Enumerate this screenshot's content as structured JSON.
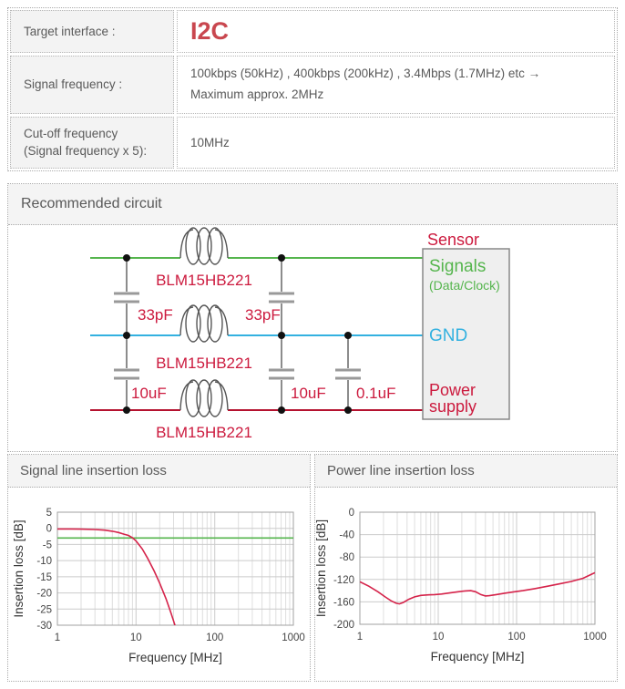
{
  "table": {
    "interface_row": {
      "label": "Target interface :",
      "value": "I2C"
    },
    "frequency_row": {
      "label": "Signal frequency :",
      "value_line1": "100kbps (50kHz) , 400kbps (200kHz) , 3.4Mbps (1.7MHz) etc →",
      "value_line2": "Maximum approx. 2MHz"
    },
    "cutoff_row": {
      "label_line1": "Cut-off frequency",
      "label_line2": "(Signal frequency x 5):",
      "value": "10MHz"
    }
  },
  "circuit": {
    "header": "Recommended circuit",
    "sensor_title": "Sensor",
    "box": {
      "signals": "Signals",
      "signals_sub": "(Data/Clock)",
      "gnd": "GND",
      "power_line1": "Power",
      "power_line2": "supply"
    },
    "beads": [
      "BLM15HB221",
      "BLM15HB221",
      "BLM15HB221"
    ],
    "caps": [
      "33pF",
      "33pF",
      "10uF",
      "10uF",
      "0.1uF"
    ],
    "colors": {
      "accent_red": "#c9474f",
      "label_red": "#cc1a3e",
      "signal_line": "#55b54d",
      "gnd_line": "#33b1e0",
      "power_line": "#b5122f"
    }
  },
  "chart_data": [
    {
      "id": "signal-line-insertion-loss",
      "type": "line",
      "title": "Signal line insertion loss",
      "xlabel": "Frequency [MHz]",
      "ylabel": "Insertion loss [dB]",
      "xscale": "log",
      "xlim": [
        1,
        1000
      ],
      "ylim": [
        -30,
        5
      ],
      "xticks": [
        1,
        10,
        100,
        1000
      ],
      "yticks": [
        5,
        0,
        -5,
        -10,
        -15,
        -20,
        -25,
        -30
      ],
      "grid": true,
      "legend": "none",
      "series": [
        {
          "name": "-3dB reference",
          "color": "#55b54d",
          "points": [
            [
              1,
              -3
            ],
            [
              1000,
              -3
            ]
          ]
        },
        {
          "name": "insertion loss",
          "color": "#d5234a",
          "points": [
            [
              1,
              -0.2
            ],
            [
              1.5,
              -0.2
            ],
            [
              2,
              -0.25
            ],
            [
              3,
              -0.35
            ],
            [
              4,
              -0.55
            ],
            [
              5,
              -0.9
            ],
            [
              6,
              -1.3
            ],
            [
              7,
              -1.8
            ],
            [
              8,
              -2.2
            ],
            [
              9,
              -2.9
            ],
            [
              10,
              -3.9
            ],
            [
              11,
              -5.2
            ],
            [
              12,
              -6.4
            ],
            [
              14,
              -9.2
            ],
            [
              17,
              -13.2
            ],
            [
              20,
              -17
            ],
            [
              24,
              -21.8
            ],
            [
              28,
              -26.4
            ],
            [
              31,
              -29.8
            ],
            [
              32.5,
              -31.5
            ]
          ]
        }
      ]
    },
    {
      "id": "power-line-insertion-loss",
      "type": "line",
      "title": "Power line insertion loss",
      "xlabel": "Frequency [MHz]",
      "ylabel": "Insertion loss [dB]",
      "xscale": "log",
      "xlim": [
        1,
        1000
      ],
      "ylim": [
        -200,
        0
      ],
      "xticks": [
        1,
        10,
        100,
        1000
      ],
      "yticks": [
        0,
        -40,
        -80,
        -120,
        -160,
        -200
      ],
      "grid": true,
      "legend": "none",
      "series": [
        {
          "name": "insertion loss",
          "color": "#d5234a",
          "points": [
            [
              1,
              -124
            ],
            [
              1.3,
              -132
            ],
            [
              1.7,
              -142
            ],
            [
              2.1,
              -151
            ],
            [
              2.5,
              -158
            ],
            [
              2.9,
              -162.5
            ],
            [
              3.2,
              -163.5
            ],
            [
              3.6,
              -161
            ],
            [
              4.2,
              -155.5
            ],
            [
              5,
              -151
            ],
            [
              6,
              -148.5
            ],
            [
              7.5,
              -147.5
            ],
            [
              9,
              -147
            ],
            [
              11,
              -146
            ],
            [
              14,
              -144
            ],
            [
              18,
              -142
            ],
            [
              22,
              -140.5
            ],
            [
              26,
              -140
            ],
            [
              30,
              -142
            ],
            [
              35,
              -147
            ],
            [
              40,
              -149.5
            ],
            [
              45,
              -149
            ],
            [
              55,
              -147
            ],
            [
              70,
              -144.5
            ],
            [
              90,
              -142.5
            ],
            [
              120,
              -140
            ],
            [
              170,
              -136.5
            ],
            [
              250,
              -132
            ],
            [
              350,
              -128
            ],
            [
              500,
              -123.5
            ],
            [
              700,
              -118
            ],
            [
              1000,
              -108
            ]
          ]
        }
      ]
    }
  ]
}
